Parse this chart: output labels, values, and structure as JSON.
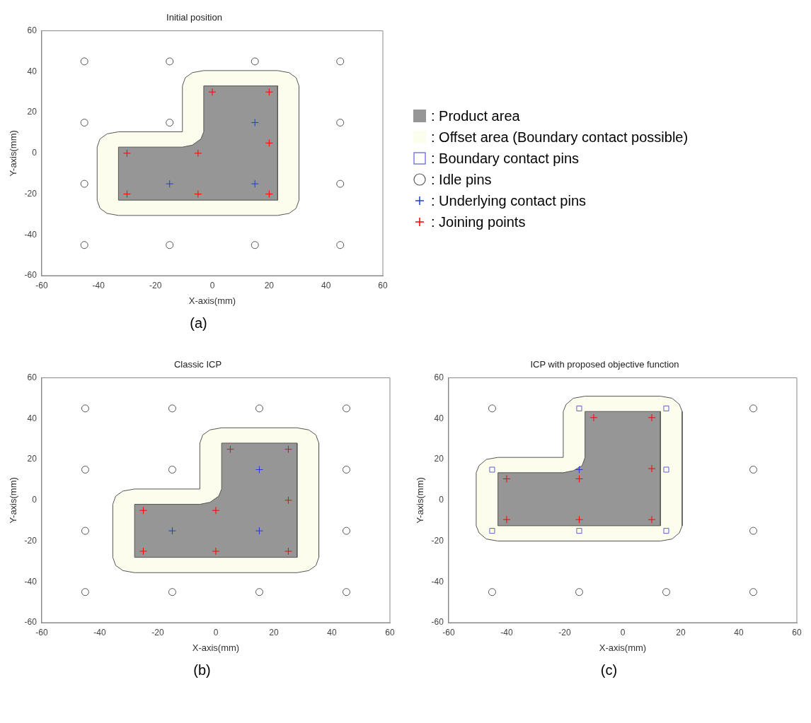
{
  "chart_data": [
    {
      "type": "scatter",
      "title": "Initial position",
      "xlabel": "X-axis(mm)",
      "ylabel": "Y-axis(mm)",
      "xlim": [
        -60,
        60
      ],
      "ylim": [
        -60,
        60
      ],
      "xticks": [
        -60,
        -40,
        -20,
        0,
        20,
        40,
        60
      ],
      "yticks": [
        -60,
        -40,
        -20,
        0,
        20,
        40,
        60
      ],
      "grid": false,
      "legend": "right",
      "annotations": [
        "(a)"
      ],
      "series": [
        {
          "name": ": Product area",
          "type": "area",
          "color": "#969696",
          "x": [
            -33,
            -33,
            -10.5,
            -7,
            -4,
            -3,
            -3,
            23,
            23,
            -33
          ],
          "values": [
            -23,
            3,
            3,
            4,
            7,
            10.5,
            33,
            33,
            -23,
            -23
          ]
        },
        {
          "name": ": Offset area (Boundary contact possible)",
          "type": "area",
          "color": "#fdfdee",
          "x": [
            -40.5,
            -40.5,
            -39.5,
            -37,
            -33,
            -10.5,
            -10.5,
            -9.5,
            -7,
            -3,
            23,
            27,
            29.5,
            30.5,
            30.5,
            29.5,
            27,
            23,
            -33,
            -37,
            -39.5,
            -40.5
          ],
          "values": [
            -23,
            3,
            7,
            9.5,
            10.5,
            10.5,
            33,
            37,
            39.5,
            40.5,
            40.5,
            39.5,
            37,
            33,
            -23,
            -27,
            -29.5,
            -30.5,
            -30.5,
            -29.5,
            -27,
            -23
          ]
        },
        {
          "name": ": Boundary contact pins",
          "type": "scatter",
          "marker": "square",
          "color": "#6060cc"
        },
        {
          "name": ": Idle pins",
          "type": "scatter",
          "marker": "circle",
          "color": "#555555",
          "x": [
            -45,
            -15,
            15,
            45,
            -45,
            -15,
            45,
            -45,
            45,
            -45,
            -15,
            15,
            45
          ],
          "values": [
            45,
            45,
            45,
            45,
            15,
            15,
            15,
            -15,
            -15,
            -45,
            -45,
            -45,
            -45
          ]
        },
        {
          "name": ": Underlying contact pins",
          "type": "scatter",
          "marker": "cross",
          "color": "#1f3fc8",
          "x": [
            15,
            -15,
            15
          ],
          "values": [
            15,
            -15,
            -15
          ]
        },
        {
          "name": ": Joining points",
          "type": "scatter",
          "marker": "cross",
          "color": "#ff0000",
          "x": [
            0,
            20,
            20,
            -5,
            -30,
            -30,
            -5,
            20
          ],
          "values": [
            30,
            30,
            5,
            0,
            0,
            -20,
            -20,
            -20
          ]
        }
      ]
    },
    {
      "type": "scatter",
      "title": "Classic ICP",
      "xlabel": "X-axis(mm)",
      "ylabel": "Y-axis(mm)",
      "xlim": [
        -60,
        60
      ],
      "ylim": [
        -60,
        60
      ],
      "xticks": [
        -60,
        -40,
        -20,
        0,
        20,
        40,
        60
      ],
      "yticks": [
        -60,
        -40,
        -20,
        0,
        20,
        40,
        60
      ],
      "grid": false,
      "annotations": [
        "(b)"
      ],
      "series": [
        {
          "type": "area",
          "color": "#969696",
          "x": [
            -28,
            -28,
            -5.5,
            -2,
            1,
            2,
            2,
            28,
            28,
            -28
          ],
          "values": [
            -28,
            -2,
            -2,
            -1,
            2,
            5.5,
            28,
            28,
            -28,
            -28
          ]
        },
        {
          "type": "area",
          "color": "#fdfdee",
          "x": [
            -35.5,
            -35.5,
            -34.5,
            -32,
            -28,
            -5.5,
            -5.5,
            -4.5,
            -2,
            2,
            28,
            32,
            34.5,
            35.5,
            35.5,
            34.5,
            32,
            28,
            -28,
            -32,
            -34.5,
            -35.5
          ],
          "values": [
            -28,
            -2,
            2,
            4.5,
            5.5,
            5.5,
            28,
            32,
            34.5,
            35.5,
            35.5,
            34.5,
            32,
            28,
            -28,
            -32,
            -34.5,
            -35.5,
            -35.5,
            -34.5,
            -32,
            -28
          ]
        },
        {
          "type": "scatter",
          "marker": "circle",
          "color": "#555555",
          "x": [
            -45,
            -15,
            15,
            45,
            -45,
            -15,
            45,
            -45,
            45,
            -45,
            -15,
            15,
            45
          ],
          "values": [
            45,
            45,
            45,
            45,
            15,
            15,
            15,
            -15,
            -15,
            -45,
            -45,
            -45,
            -45
          ]
        },
        {
          "type": "scatter",
          "marker": "cross",
          "color": "#1f3fc8",
          "x": [
            15,
            -15,
            15
          ],
          "values": [
            15,
            -15,
            -15
          ]
        },
        {
          "type": "scatter",
          "marker": "cross",
          "color": "#ff0000",
          "x": [
            5,
            25,
            25,
            0,
            -25,
            -25,
            0,
            25
          ],
          "values": [
            25,
            25,
            0,
            -5,
            -5,
            -25,
            -25,
            -25
          ]
        }
      ]
    },
    {
      "type": "scatter",
      "title": "ICP with proposed objective function",
      "xlabel": "X-axis(mm)",
      "ylabel": "Y-axis(mm)",
      "xlim": [
        -60,
        60
      ],
      "ylim": [
        -60,
        60
      ],
      "xticks": [
        -60,
        -40,
        -20,
        0,
        20,
        40,
        60
      ],
      "yticks": [
        -60,
        -40,
        -20,
        0,
        20,
        40,
        60
      ],
      "grid": false,
      "annotations": [
        "(c)"
      ],
      "series": [
        {
          "type": "area",
          "color": "#969696",
          "x": [
            -43,
            -43,
            -20.5,
            -17,
            -14,
            -13,
            -13,
            13,
            13,
            -43
          ],
          "values": [
            -12.5,
            13.5,
            13.5,
            14.5,
            17,
            21,
            43.5,
            43.5,
            -12.5,
            -12.5
          ]
        },
        {
          "type": "area",
          "color": "#fdfdee",
          "x": [
            -50.5,
            -50.5,
            -49.5,
            -47,
            -43,
            -20.5,
            -20.5,
            -19.5,
            -17,
            -13,
            13,
            17,
            19.5,
            20.5,
            20.5,
            19.5,
            17,
            13,
            -43,
            -47,
            -49.5,
            -50.5
          ],
          "values": [
            -12.5,
            13.5,
            17,
            20,
            21,
            21,
            43.5,
            47,
            50,
            51,
            51,
            50,
            47,
            43.5,
            -12.5,
            -16,
            -19,
            -20,
            -20,
            -19,
            -16,
            -12.5
          ]
        },
        {
          "type": "scatter",
          "marker": "square",
          "color": "#6060cc",
          "x": [
            -15,
            15,
            -45,
            15,
            -45,
            -15,
            15
          ],
          "values": [
            45,
            45,
            15,
            15,
            -15,
            -15,
            -15
          ]
        },
        {
          "type": "scatter",
          "marker": "circle",
          "color": "#555555",
          "x": [
            -45,
            45,
            45,
            45,
            -45,
            -15,
            15,
            45
          ],
          "values": [
            45,
            45,
            15,
            -15,
            -45,
            -45,
            -45,
            -45
          ]
        },
        {
          "type": "scatter",
          "marker": "cross",
          "color": "#1f3fc8",
          "x": [
            -15
          ],
          "values": [
            15
          ]
        },
        {
          "type": "scatter",
          "marker": "cross",
          "color": "#ff0000",
          "x": [
            -10,
            10,
            10,
            -15,
            -40,
            -40,
            -15,
            10
          ],
          "values": [
            40.5,
            40.5,
            15.5,
            10.5,
            10.5,
            -9.5,
            -9.5,
            -9.5
          ]
        }
      ]
    }
  ]
}
